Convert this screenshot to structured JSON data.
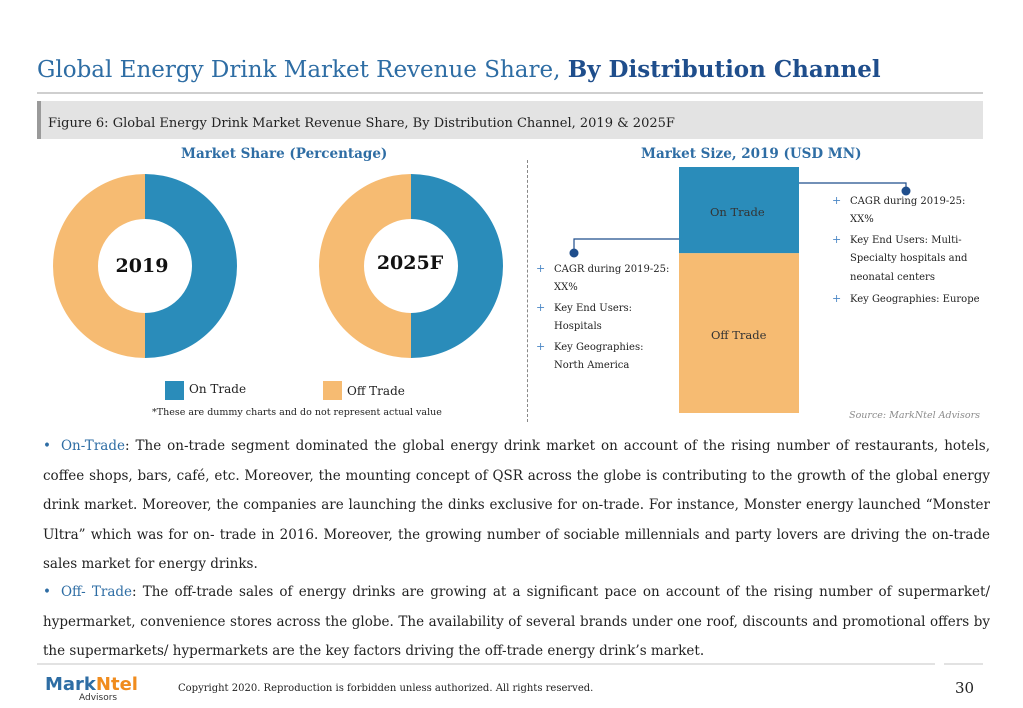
{
  "slide": {
    "title_regular": "Global Energy Drink Market Revenue Share, ",
    "title_bold": "By Distribution Channel",
    "figure_caption": "Figure 6: Global Energy Drink Market Revenue Share, By Distribution Channel,  2019 & 2025F",
    "left_panel_title": "Market Share (Percentage)",
    "right_panel_title": "Market Size, 2019 (USD MN)",
    "note": "*These are dummy charts and do not represent actual value",
    "source": "Source: MarkNtel Advisors"
  },
  "colors": {
    "on_trade": "#2a8cba",
    "off_trade": "#f6bb72",
    "title_blue": "#2e6da4",
    "connector": "#1f4e8c"
  },
  "legend": {
    "on_trade": "On Trade",
    "off_trade": "Off Trade"
  },
  "chart_data": [
    {
      "type": "pie",
      "donut": true,
      "center_label": "2019",
      "slices": [
        {
          "name": "On Trade",
          "value": 50
        },
        {
          "name": "Off Trade",
          "value": 50
        }
      ]
    },
    {
      "type": "pie",
      "donut": true,
      "center_label": "2025F",
      "slices": [
        {
          "name": "On Trade",
          "value": 50
        },
        {
          "name": "Off Trade",
          "value": 50
        }
      ]
    },
    {
      "type": "bar",
      "stacked": true,
      "categories": [
        "2019"
      ],
      "series": [
        {
          "name": "Off Trade",
          "values": [
            65
          ]
        },
        {
          "name": "On Trade",
          "values": [
            35
          ]
        }
      ]
    }
  ],
  "annotations": {
    "on_trade_lines": [
      "CAGR during 2019-25:",
      "XX%",
      "Key End Users: Multi-",
      "Specialty hospitals and",
      "neonatal centers",
      "Key Geographies: Europe"
    ],
    "on_trade_plus": [
      true,
      false,
      true,
      false,
      false,
      true
    ],
    "off_trade_lines": [
      "CAGR during 2019-25:",
      "XX%",
      "Key End Users:",
      "Hospitals",
      "Key Geographies:",
      "North America"
    ],
    "off_trade_plus": [
      true,
      false,
      true,
      false,
      true,
      false
    ]
  },
  "paragraphs": {
    "on_trade_lead": "On-Trade",
    "on_trade_text": ": The on-trade segment dominated the global energy drink market on account of the rising number of restaurants, hotels, coffee shops, bars, café, etc. Moreover, the mounting concept of QSR across the globe is contributing to the growth of the global energy drink market. Moreover, the companies are launching the dinks exclusive for on-trade. For instance, Monster energy launched “Monster Ultra” which was for on- trade in 2016. Moreover, the growing number of sociable millennials and party lovers are driving the on-trade sales market for energy drinks.",
    "off_trade_lead": "Off- Trade",
    "off_trade_text": ":  The off-trade sales of energy drinks are growing at a significant pace on account of the rising number of supermarket/ hypermarket, convenience stores across the globe. The availability of several brands under one roof, discounts and promotional offers by the supermarkets/ hypermarkets are the key factors driving the off-trade energy drink’s market."
  },
  "footer": {
    "logo_mark": "Mark",
    "logo_ntel": "Ntel",
    "logo_sub": "Advisors",
    "copyright": "Copyright 2020. Reproduction is forbidden unless authorized. All rights reserved.",
    "page_number": "30"
  }
}
